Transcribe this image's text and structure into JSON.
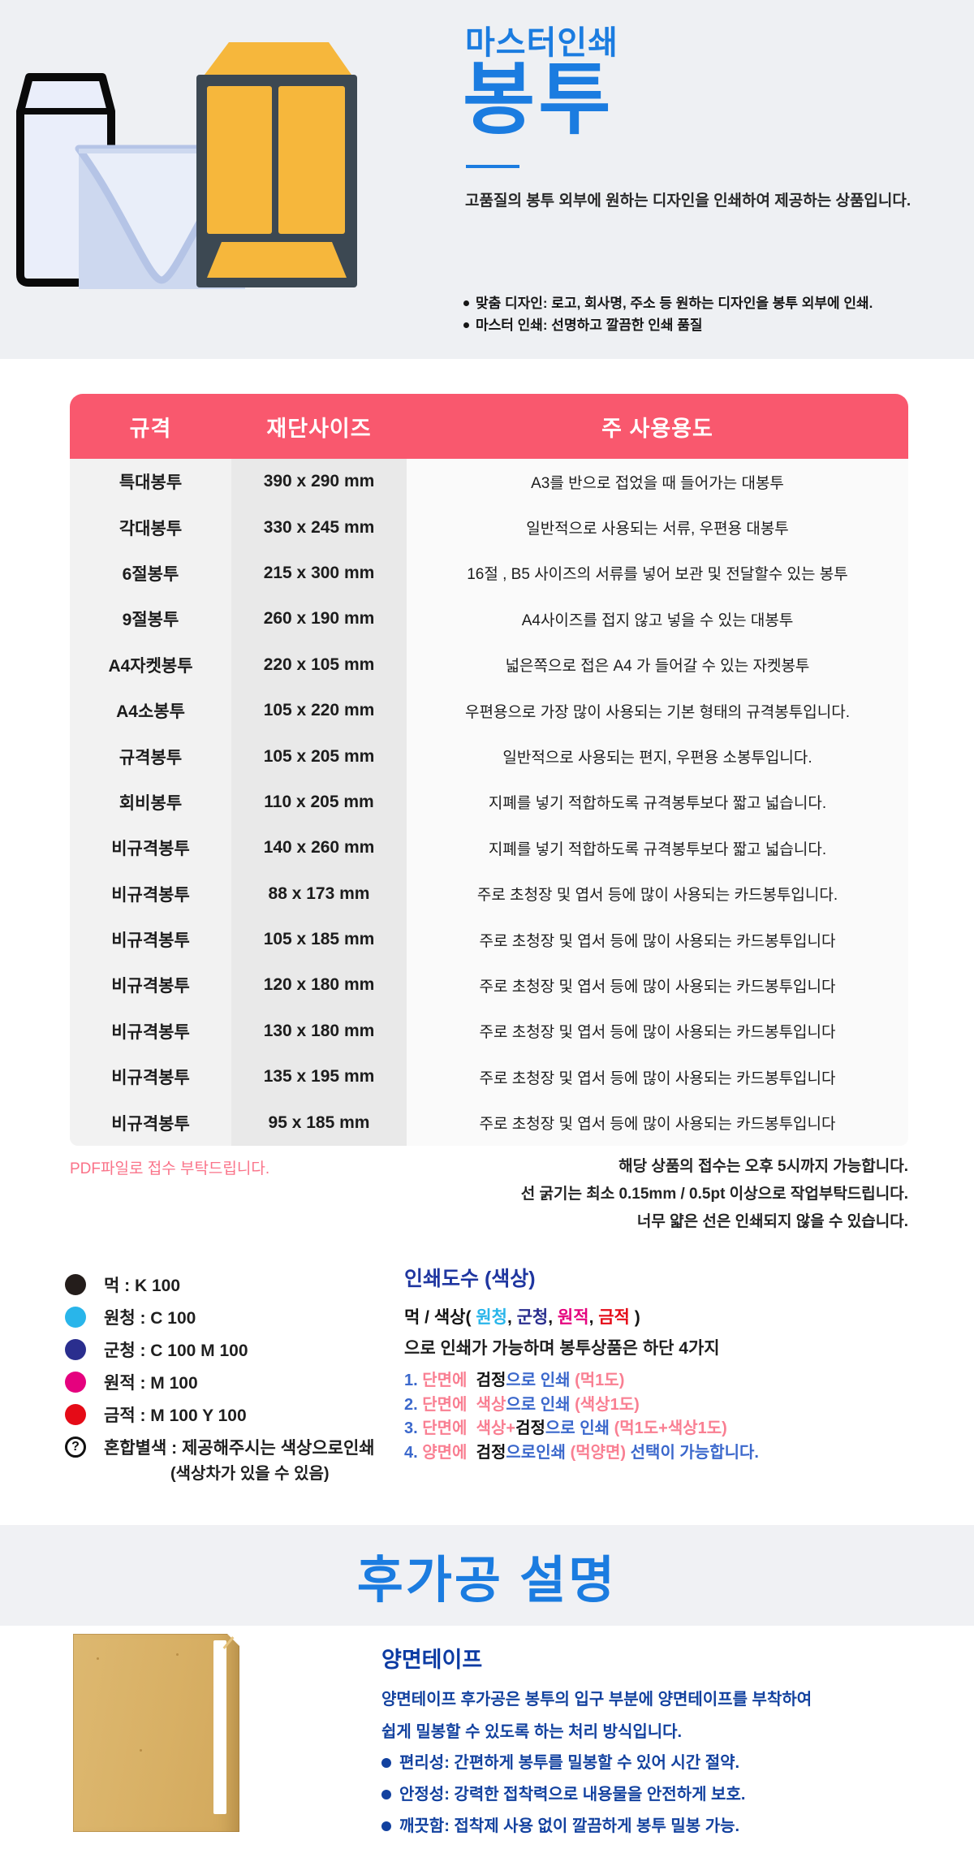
{
  "colors": {
    "accent_blue": "#1b7ce0",
    "table_header_pink": "#f9586e",
    "deep_blue": "#1f36a0",
    "note_pink": "#fa7389",
    "navy_text": "#12419f",
    "hero_background": "#eef0f3"
  },
  "hero": {
    "brand": "마스터인쇄",
    "title": "봉투",
    "description": "고품질의 봉투 외부에 원하는 디자인을 인쇄하여 제공하는 상품입니다.",
    "bullets": [
      "맞춤 디자인: 로고, 회사명, 주소 등 원하는 디자인을 봉투 외부에 인쇄.",
      "마스터 인쇄: 선명하고 깔끔한 인쇄 품질"
    ]
  },
  "spec_table": {
    "columns": [
      "규격",
      "재단사이즈",
      "주 사용용도"
    ],
    "rows": [
      {
        "name": "특대봉투",
        "size": "390 x 290 mm",
        "usage": "A3를 반으로 접었을 때 들어가는 대봉투"
      },
      {
        "name": "각대봉투",
        "size": "330 x 245 mm",
        "usage": "일반적으로 사용되는 서류, 우편용 대봉투"
      },
      {
        "name": "6절봉투",
        "size": "215 x 300 mm",
        "usage": "16절 , B5 사이즈의 서류를 넣어 보관 및 전달할수 있는 봉투"
      },
      {
        "name": "9절봉투",
        "size": "260 x 190 mm",
        "usage": "A4사이즈를 접지 않고 넣을 수 있는 대봉투"
      },
      {
        "name": "A4자켓봉투",
        "size": "220 x 105 mm",
        "usage": "넓은쪽으로 접은 A4 가 들어갈 수 있는 자켓봉투"
      },
      {
        "name": "A4소봉투",
        "size": "105 x 220 mm",
        "usage": "우편용으로 가장 많이 사용되는 기본 형태의 규격봉투입니다."
      },
      {
        "name": "규격봉투",
        "size": "105 x 205 mm",
        "usage": "일반적으로 사용되는 편지, 우편용 소봉투입니다."
      },
      {
        "name": "회비봉투",
        "size": "110 x 205 mm",
        "usage": "지폐를 넣기 적합하도록 규격봉투보다 짧고 넓습니다."
      },
      {
        "name": "비규격봉투",
        "size": "140 x 260 mm",
        "usage": "지폐를 넣기 적합하도록 규격봉투보다 짧고 넓습니다."
      },
      {
        "name": "비규격봉투",
        "size": "88 x 173 mm",
        "usage": "주로 초청장 및 엽서 등에 많이 사용되는 카드봉투입니다."
      },
      {
        "name": "비규격봉투",
        "size": "105 x 185 mm",
        "usage": "주로 초청장 및 엽서 등에 많이 사용되는 카드봉투입니다"
      },
      {
        "name": "비규격봉투",
        "size": "120 x 180 mm",
        "usage": "주로 초청장 및 엽서 등에 많이 사용되는 카드봉투입니다"
      },
      {
        "name": "비규격봉투",
        "size": "130 x 180 mm",
        "usage": "주로 초청장 및 엽서 등에 많이 사용되는 카드봉투입니다"
      },
      {
        "name": "비규격봉투",
        "size": "135 x 195 mm",
        "usage": "주로 초청장 및 엽서 등에 많이 사용되는 카드봉투입니다"
      },
      {
        "name": "비규격봉투",
        "size": "95 x 185 mm",
        "usage": "주로 초청장 및 엽서 등에 많이 사용되는 카드봉투입니다"
      }
    ]
  },
  "notes": {
    "left_note": "PDF파일로 접수 부탁드립니다.",
    "right_notes": [
      "해당 상품의 접수는 오후 5시까지 가능합니다.",
      "선 굵기는 최소 0.15mm / 0.5pt 이상으로 작업부탁드립니다.",
      "너무 얇은 선은 인쇄되지 않을 수 있습니다."
    ]
  },
  "ink_section": {
    "title": "인쇄도수 (색상)",
    "swatches": [
      {
        "type": "dot",
        "label": "먹 : K 100",
        "color": "#241d1b"
      },
      {
        "type": "dot",
        "label": "원청 : C 100",
        "color": "#29b5ea"
      },
      {
        "type": "dot",
        "label": "군청 : C 100 M 100",
        "color": "#2a2e8e"
      },
      {
        "type": "dot",
        "label": "원적 : M 100",
        "color": "#e5017e"
      },
      {
        "type": "dot",
        "label": "금적 : M 100 Y 100",
        "color": "#e50b17"
      },
      {
        "type": "question",
        "symbol": "?",
        "label": "혼합별색 : 제공해주시는 색상으로인쇄",
        "sublabel": "(색상차가 있을 수 있음)"
      }
    ],
    "intro_segments": [
      {
        "t": "먹 / 색상( ",
        "c": "ink"
      },
      {
        "t": "원청",
        "c": "cyan"
      },
      {
        "t": ", ",
        "c": "ink"
      },
      {
        "t": "군청",
        "c": "navy"
      },
      {
        "t": ", ",
        "c": "ink"
      },
      {
        "t": "원적",
        "c": "magenta"
      },
      {
        "t": ", ",
        "c": "ink"
      },
      {
        "t": "금적",
        "c": "red"
      },
      {
        "t": " )",
        "c": "ink"
      }
    ],
    "intro_line2": "으로 인쇄가 가능하며 봉투상품은 하단 4가지",
    "options": [
      [
        {
          "t": "1. ",
          "c": "blue"
        },
        {
          "t": "단면에",
          "c": "pink"
        },
        {
          "t": "  ",
          "c": "ink"
        },
        {
          "t": "검정",
          "c": "ink"
        },
        {
          "t": "으로 인쇄 ",
          "c": "blue"
        },
        {
          "t": "(먹1도)",
          "c": "pink"
        }
      ],
      [
        {
          "t": "2. ",
          "c": "blue"
        },
        {
          "t": "단면에",
          "c": "pink"
        },
        {
          "t": "  ",
          "c": "ink"
        },
        {
          "t": "색상",
          "c": "pink"
        },
        {
          "t": "으로 인쇄 ",
          "c": "blue"
        },
        {
          "t": "(색상1도)",
          "c": "pink"
        }
      ],
      [
        {
          "t": "3. ",
          "c": "blue"
        },
        {
          "t": "단면에",
          "c": "pink"
        },
        {
          "t": "  ",
          "c": "ink"
        },
        {
          "t": "색상+",
          "c": "pink"
        },
        {
          "t": "검정",
          "c": "ink"
        },
        {
          "t": "으로 인쇄 ",
          "c": "blue"
        },
        {
          "t": "(먹1도+색상1도)",
          "c": "pink"
        }
      ],
      [
        {
          "t": "4. ",
          "c": "blue"
        },
        {
          "t": "양면에",
          "c": "pink"
        },
        {
          "t": "  ",
          "c": "ink"
        },
        {
          "t": "검정",
          "c": "ink"
        },
        {
          "t": "으로인쇄 ",
          "c": "blue"
        },
        {
          "t": "(먹양면)",
          "c": "pink"
        },
        {
          "t": " 선택이 가능합니다.",
          "c": "blue"
        }
      ]
    ]
  },
  "band": {
    "title": "후가공 설명"
  },
  "finishing": {
    "heading": "양면테이프",
    "paragraph1": "양면테이프 후가공은 봉투의 입구 부분에 양면테이프를 부착하여",
    "paragraph2": "쉽게 밀봉할 수 있도록 하는 처리 방식입니다.",
    "bullets": [
      "편리성: 간편하게 봉투를 밀봉할 수 있어 시간 절약.",
      "안정성: 강력한 접착력으로 내용물을 안전하게 보호.",
      "깨끗함: 접착제 사용 없이 깔끔하게 봉투 밀봉 가능."
    ]
  }
}
